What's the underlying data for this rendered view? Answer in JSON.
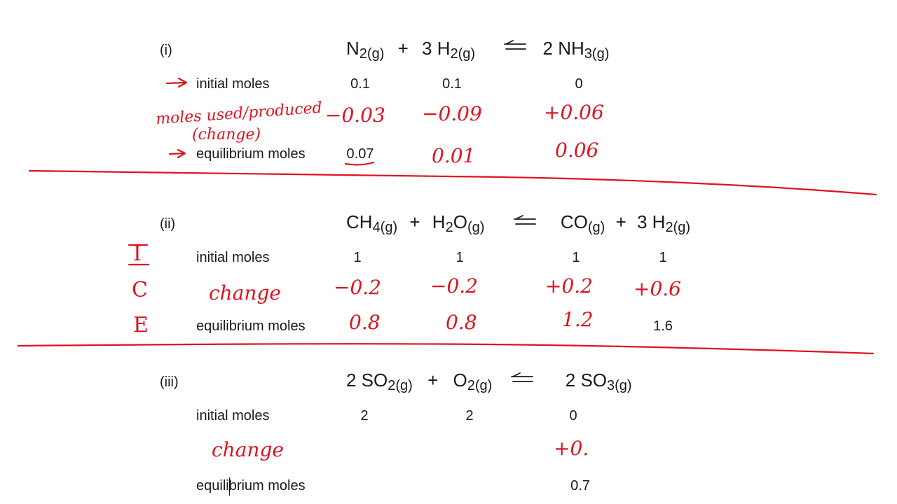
{
  "colors": {
    "ink": "#e0121f",
    "text": "#1a1a1a",
    "background": "#ffffff"
  },
  "sections": [
    {
      "label": "(i)",
      "equation": {
        "r1": "N",
        "r1s": "2(g)",
        "p1": "+",
        "r2": "3 H",
        "r2s": "2(g)",
        "arrow": "⇌",
        "pr1": "2 NH",
        "pr1s": "3(g)"
      },
      "rows": {
        "initial_label": "initial moles",
        "initial": [
          "0.1",
          "0.1",
          "0"
        ],
        "change_label": "moles used/produced",
        "change_sub": "(change)",
        "change": [
          "−0.03",
          "−0.09",
          "+0.06"
        ],
        "equilibrium_label": "equilibrium moles",
        "equilibrium": [
          "0.07",
          "0.01",
          "0.06"
        ]
      }
    },
    {
      "label": "(ii)",
      "equation": {
        "r1": "CH",
        "r1s": "4(g)",
        "p1": "+",
        "r2": "H",
        "r2s": "2",
        "r2b": "O",
        "r2bs": "(g)",
        "arrow": "⇌",
        "pr1": "CO",
        "pr1s": "(g)",
        "p2": "+",
        "pr2": "3 H",
        "pr2s": "2(g)"
      },
      "ice": [
        "I",
        "C",
        "E"
      ],
      "rows": {
        "initial_label": "initial moles",
        "initial": [
          "1",
          "1",
          "1",
          "1"
        ],
        "change_label": "change",
        "change": [
          "−0.2",
          "−0.2",
          "+0.2",
          "+0.6"
        ],
        "equilibrium_label": "equilibrium moles",
        "equilibrium": [
          "0.8",
          "0.8",
          "1.2",
          "1.6"
        ]
      }
    },
    {
      "label": "(iii)",
      "equation": {
        "r1": "2 SO",
        "r1s": "2(g)",
        "p1": "+",
        "r2": "O",
        "r2s": "2(g)",
        "arrow": "⇌",
        "pr1": "2 SO",
        "pr1s": "3(g)"
      },
      "rows": {
        "initial_label": "initial moles",
        "initial": [
          "2",
          "2",
          "0"
        ],
        "change_label": "change",
        "change": [
          "+0."
        ],
        "equilibrium_label": "equilibrium moles",
        "equilibrium": [
          "0.7"
        ]
      }
    }
  ]
}
